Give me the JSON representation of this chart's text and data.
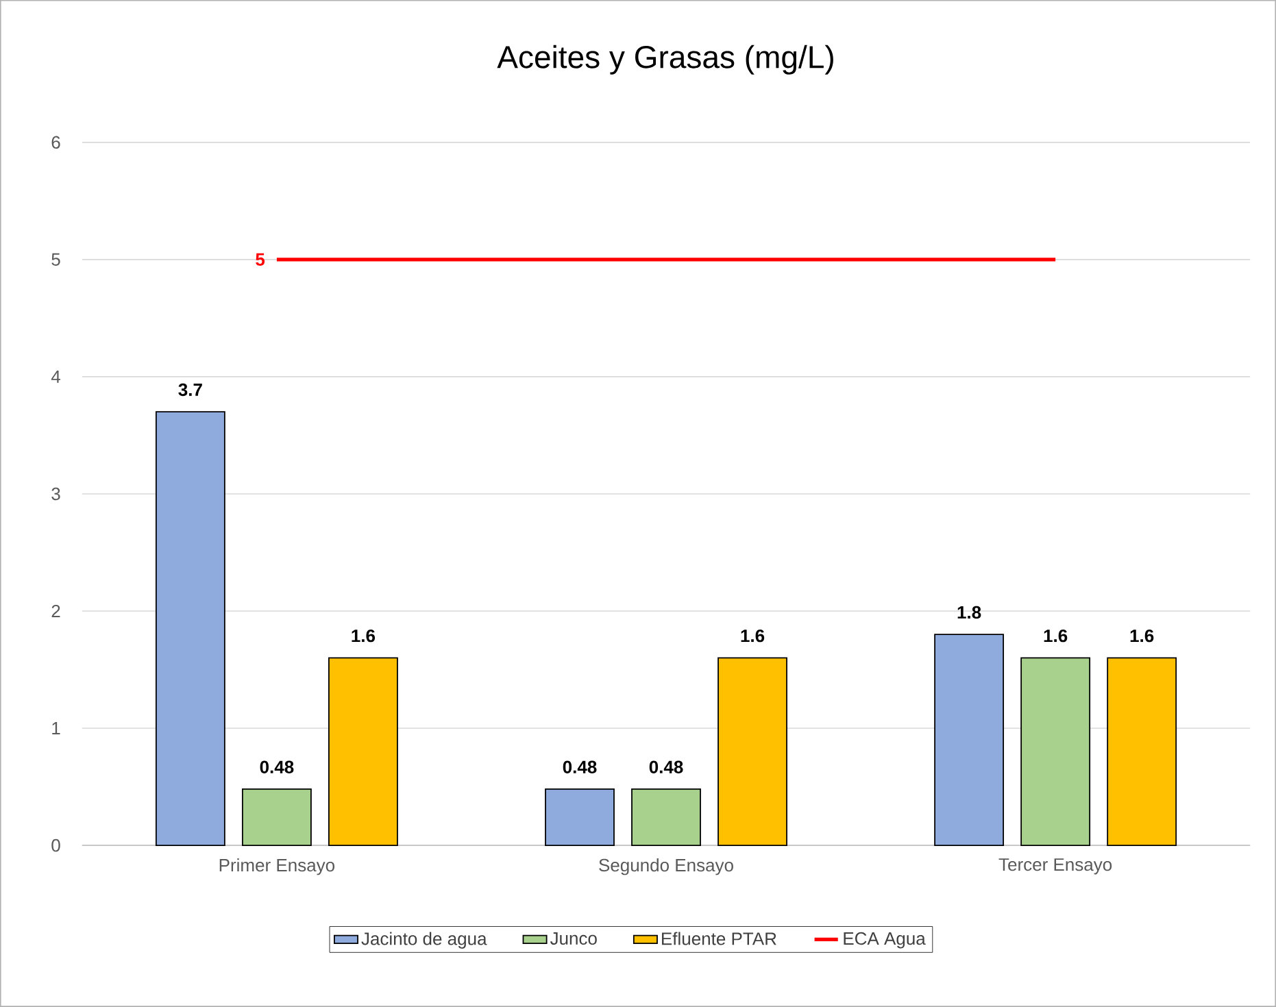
{
  "chart_data": {
    "type": "bar",
    "title": "Aceites y Grasas (mg/L)",
    "categories": [
      "Primer Ensayo",
      "Segundo Ensayo",
      "Tercer Ensayo"
    ],
    "series": [
      {
        "name": "Jacinto de agua",
        "color": "#8faadc",
        "values": [
          3.7,
          0.48,
          1.8
        ],
        "value_labels": [
          "3.7",
          "0.48",
          "1.8"
        ]
      },
      {
        "name": "Junco",
        "color": "#a9d18e",
        "values": [
          0.48,
          0.48,
          1.6
        ],
        "value_labels": [
          "0.48",
          "0.48",
          "1.6"
        ]
      },
      {
        "name": "Efluente PTAR",
        "color": "#ffc000",
        "values": [
          1.6,
          1.6,
          1.6
        ],
        "value_labels": [
          "1.6",
          "1.6",
          "1.6"
        ]
      },
      {
        "name": "ECA Agua",
        "type": "line",
        "color": "#ff0000",
        "values": [
          5,
          5,
          5
        ],
        "value_labels": [
          "5",
          null,
          null
        ]
      }
    ],
    "ylim": [
      0,
      6
    ],
    "yticks": [
      0,
      1,
      2,
      3,
      4,
      5,
      6
    ],
    "grid": "y",
    "legend": "bottom"
  }
}
